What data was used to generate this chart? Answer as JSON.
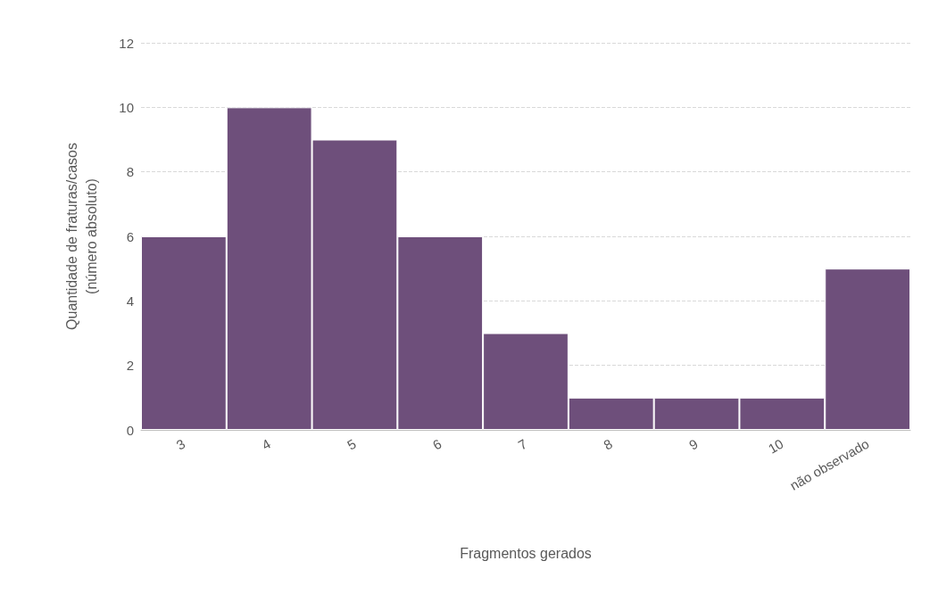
{
  "chart_data": {
    "type": "bar",
    "xlabel": "Fragmentos gerados",
    "ylabel": "Quantidade de fraturas/casos\n(número absoluto)",
    "categories": [
      "3",
      "4",
      "5",
      "6",
      "7",
      "8",
      "9",
      "10",
      "não observado"
    ],
    "values": [
      6,
      10,
      9,
      6,
      3,
      1,
      1,
      1,
      5
    ],
    "color": "#6e4f7b",
    "ylim": [
      0,
      12
    ],
    "yticks": [
      0,
      2,
      4,
      6,
      8,
      10,
      12
    ],
    "grid": "y"
  }
}
